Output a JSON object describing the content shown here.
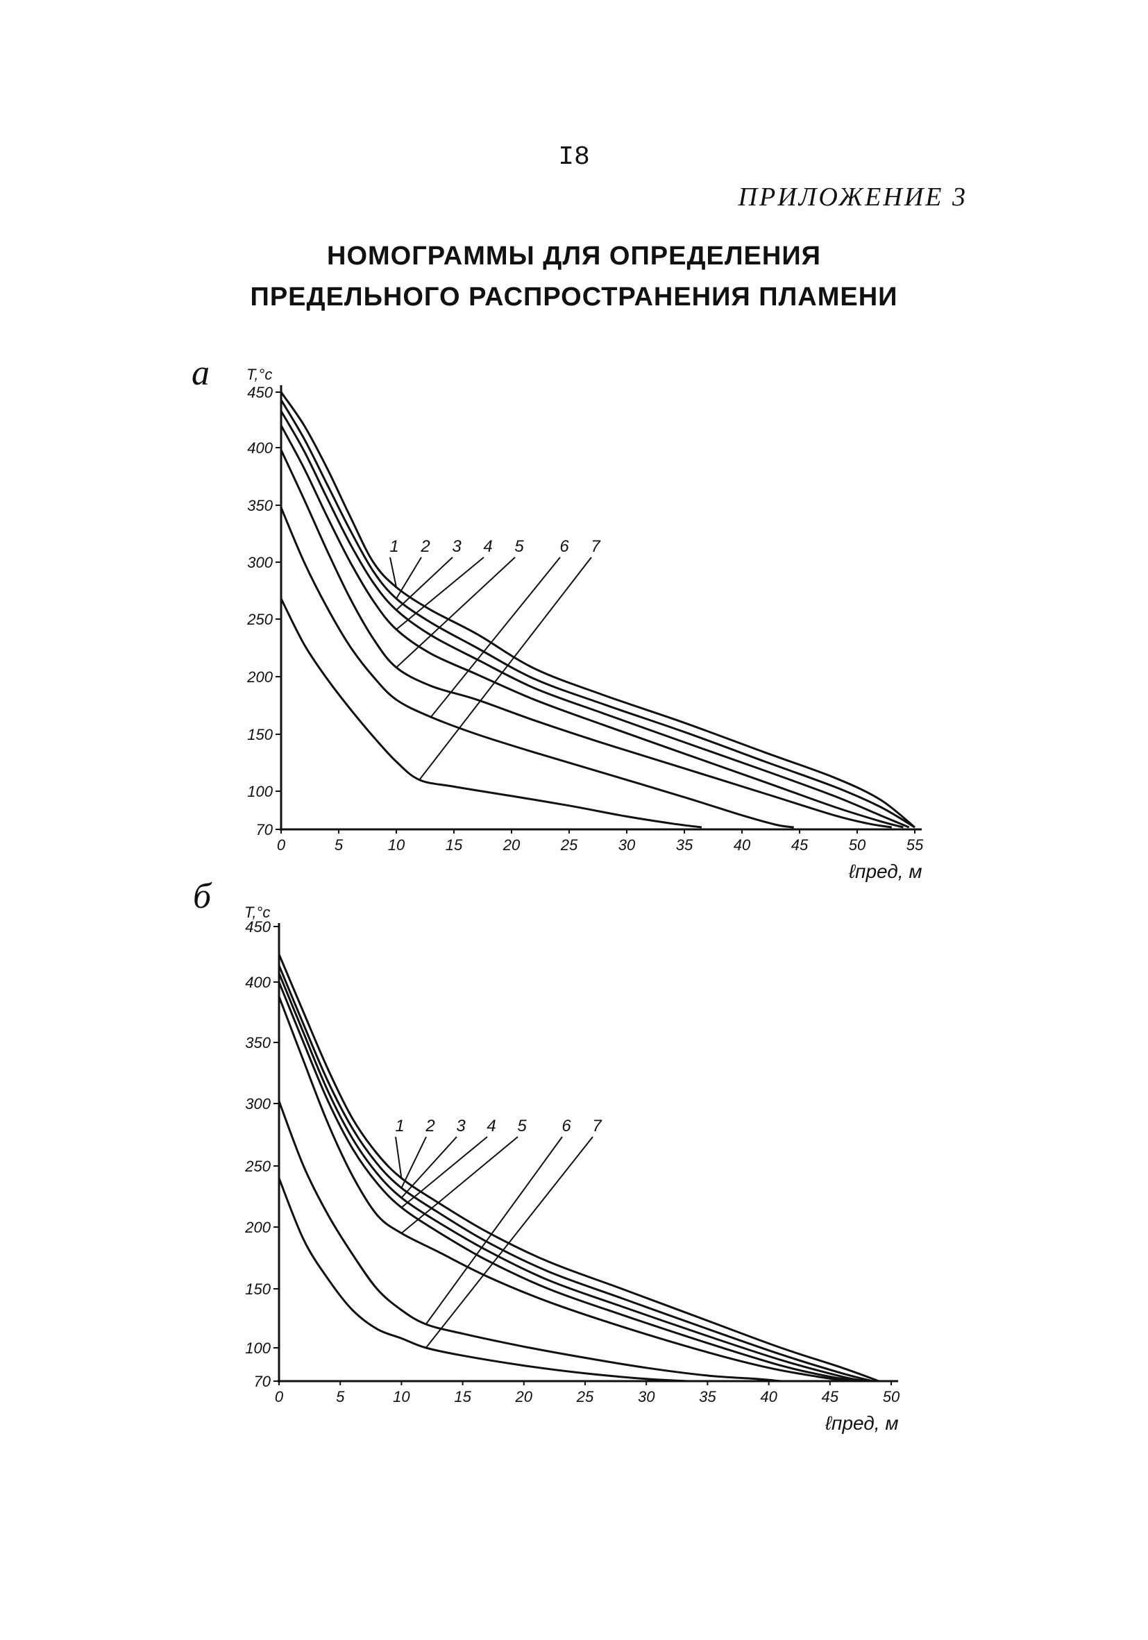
{
  "page_number": "I8",
  "appendix": "ПРИЛОЖЕНИЕ 3",
  "title": [
    "НОМОГРАММЫ ДЛЯ ОПРЕДЕЛЕНИЯ",
    "ПРЕДЕЛЬНОГО   РАСПРОСТРАНЕНИЯ ПЛАМЕНИ"
  ],
  "chart_data": [
    {
      "panel": "а",
      "type": "line",
      "ylabel": "T,°c",
      "xlabel": "ℓпред, м",
      "xlim": [
        0,
        55
      ],
      "ylim": [
        70,
        450
      ],
      "xticks": [
        0,
        5,
        10,
        15,
        20,
        25,
        30,
        35,
        40,
        45,
        50,
        55
      ],
      "yticks": [
        70,
        100,
        150,
        200,
        250,
        300,
        350,
        400,
        450
      ],
      "ytick_labels": [
        "70",
        "100",
        "150",
        "200",
        "250",
        "300",
        "350",
        "400",
        "450"
      ],
      "series": [
        {
          "name": "1",
          "x": [
            0,
            2,
            4,
            6,
            8,
            10,
            13,
            17,
            22,
            28,
            35,
            42,
            48,
            52,
            55
          ],
          "y": [
            452,
            420,
            382,
            340,
            300,
            278,
            258,
            237,
            207,
            184,
            160,
            134,
            112,
            93,
            70
          ]
        },
        {
          "name": "2",
          "x": [
            0,
            2,
            4,
            6,
            8,
            10,
            13,
            17,
            22,
            28,
            35,
            42,
            48,
            52,
            55
          ],
          "y": [
            443,
            408,
            368,
            328,
            292,
            268,
            247,
            225,
            198,
            176,
            152,
            126,
            104,
            87,
            70
          ]
        },
        {
          "name": "3",
          "x": [
            0,
            2,
            4,
            6,
            8,
            10,
            13,
            17,
            22,
            28,
            35,
            42,
            48,
            52,
            54.5
          ],
          "y": [
            433,
            397,
            356,
            316,
            282,
            258,
            236,
            215,
            190,
            168,
            143,
            118,
            96,
            80,
            70
          ]
        },
        {
          "name": "4",
          "x": [
            0,
            2,
            4,
            6,
            8,
            10,
            13,
            17,
            22,
            28,
            35,
            42,
            48,
            52,
            54
          ],
          "y": [
            420,
            382,
            340,
            300,
            266,
            241,
            220,
            202,
            180,
            158,
            133,
            108,
            87,
            75,
            70
          ]
        },
        {
          "name": "5",
          "x": [
            0,
            2,
            4,
            6,
            8,
            10,
            13,
            17,
            22,
            28,
            35,
            42,
            48,
            51,
            53
          ],
          "y": [
            398,
            355,
            310,
            268,
            233,
            208,
            192,
            180,
            162,
            142,
            120,
            98,
            80,
            73,
            70
          ]
        },
        {
          "name": "6",
          "x": [
            0,
            2,
            4,
            6,
            8,
            10,
            13,
            17,
            22,
            28,
            35,
            40,
            43,
            44.5
          ],
          "y": [
            348,
            300,
            260,
            226,
            200,
            180,
            165,
            150,
            134,
            116,
            95,
            80,
            72,
            70
          ]
        },
        {
          "name": "7",
          "x": [
            0,
            2,
            4,
            6,
            8,
            10,
            12,
            15,
            20,
            25,
            30,
            34,
            36.5
          ],
          "y": [
            268,
            228,
            198,
            172,
            148,
            126,
            110,
            104,
            96,
            88,
            79,
            73,
            70
          ]
        }
      ],
      "curve_labels": [
        "1",
        "2",
        "3",
        "4",
        "5",
        "6",
        "7"
      ]
    },
    {
      "panel": "б",
      "type": "line",
      "ylabel": "T,°c",
      "xlabel": "ℓпред, м",
      "xlim": [
        0,
        50
      ],
      "ylim": [
        70,
        450
      ],
      "xticks": [
        0,
        5,
        10,
        15,
        20,
        25,
        30,
        35,
        40,
        45,
        50
      ],
      "yticks": [
        70,
        100,
        150,
        200,
        250,
        300,
        350,
        400,
        450
      ],
      "ytick_labels": [
        "70",
        "100",
        "150",
        "200",
        "250",
        "300",
        "350",
        "400",
        "450"
      ],
      "series": [
        {
          "name": "1",
          "x": [
            0,
            2,
            4,
            6,
            8,
            10,
            13,
            17,
            22,
            28,
            35,
            41,
            46,
            49
          ],
          "y": [
            425,
            375,
            328,
            288,
            260,
            240,
            220,
            196,
            172,
            150,
            123,
            100,
            82,
            70
          ]
        },
        {
          "name": "2",
          "x": [
            0,
            2,
            4,
            6,
            8,
            10,
            13,
            17,
            22,
            28,
            35,
            41,
            46,
            48.5
          ],
          "y": [
            415,
            365,
            318,
            280,
            252,
            232,
            212,
            188,
            164,
            142,
            116,
            94,
            77,
            70
          ]
        },
        {
          "name": "3",
          "x": [
            0,
            2,
            4,
            6,
            8,
            10,
            13,
            17,
            22,
            28,
            35,
            41,
            46,
            48
          ],
          "y": [
            408,
            358,
            310,
            272,
            244,
            224,
            204,
            181,
            157,
            135,
            110,
            89,
            74,
            70
          ]
        },
        {
          "name": "4",
          "x": [
            0,
            2,
            4,
            6,
            8,
            10,
            13,
            17,
            22,
            28,
            35,
            41,
            45,
            47.5
          ],
          "y": [
            400,
            350,
            302,
            264,
            236,
            216,
            196,
            173,
            150,
            128,
            104,
            84,
            74,
            70
          ]
        },
        {
          "name": "5",
          "x": [
            0,
            2,
            4,
            6,
            8,
            10,
            13,
            17,
            22,
            28,
            35,
            40,
            44,
            46.5
          ],
          "y": [
            388,
            335,
            284,
            242,
            210,
            195,
            180,
            160,
            139,
            118,
            96,
            82,
            74,
            70
          ]
        },
        {
          "name": "6",
          "x": [
            0,
            2,
            4,
            6,
            8,
            10,
            12,
            15,
            20,
            25,
            30,
            35,
            39,
            41
          ],
          "y": [
            302,
            250,
            210,
            178,
            150,
            132,
            120,
            112,
            101,
            91,
            82,
            75,
            72,
            70
          ]
        },
        {
          "name": "7",
          "x": [
            0,
            2,
            4,
            6,
            8,
            10,
            12,
            15,
            20,
            25,
            30,
            33.5
          ],
          "y": [
            240,
            190,
            158,
            132,
            116,
            108,
            100,
            93,
            84,
            77,
            72,
            70
          ]
        }
      ],
      "curve_labels": [
        "1",
        "2",
        "3",
        "4",
        "5",
        "6",
        "7"
      ]
    }
  ]
}
